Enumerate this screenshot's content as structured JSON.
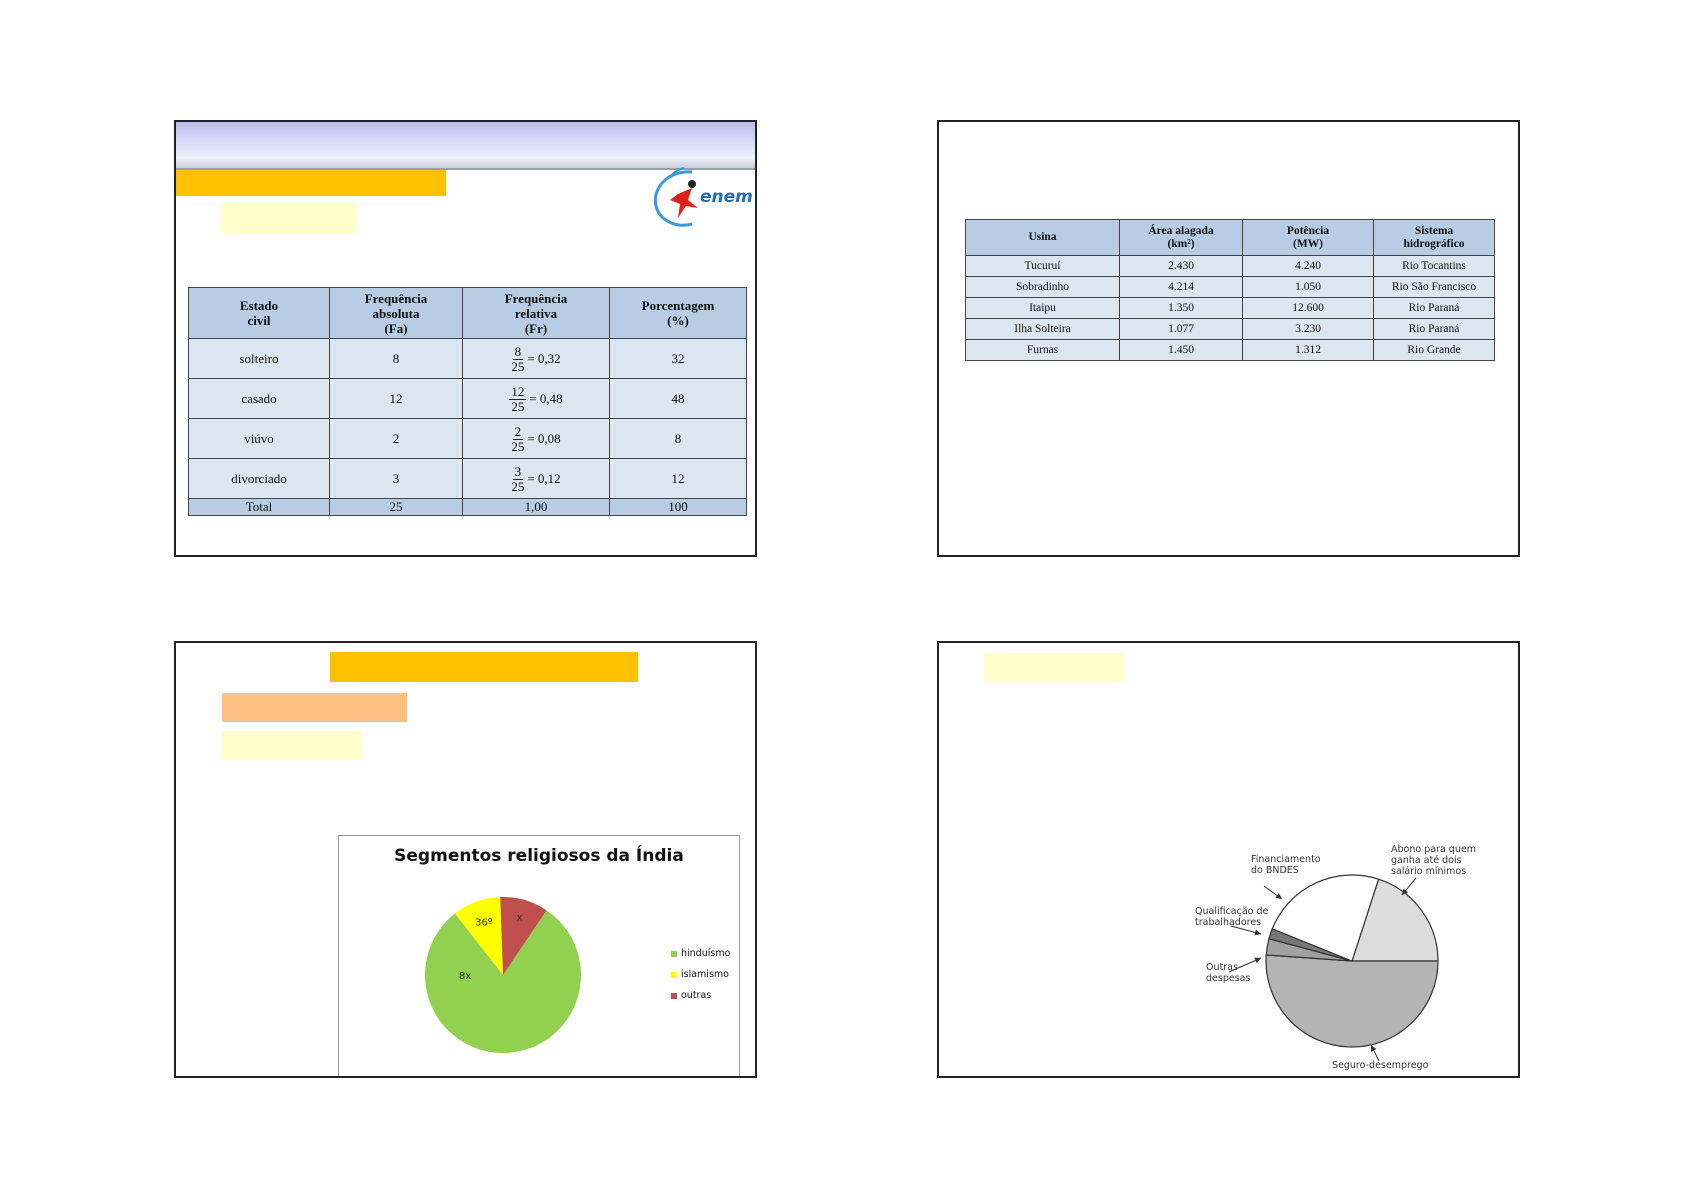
{
  "slide1": {
    "table": {
      "headers": [
        "Estado\ncivil",
        "Frequência\nabsoluta\n(Fa)",
        "Frequência\nrelativa\n(Fr)",
        "Porcentagem\n(%)"
      ],
      "rows": [
        {
          "estado": "solteiro",
          "fa": "8",
          "num": "8",
          "den": "25",
          "res": "= 0,32",
          "pct": "32"
        },
        {
          "estado": "casado",
          "fa": "12",
          "num": "12",
          "den": "25",
          "res": "= 0,48",
          "pct": "48"
        },
        {
          "estado": "viúvo",
          "fa": "2",
          "num": "2",
          "den": "25",
          "res": "= 0,08",
          "pct": "8"
        },
        {
          "estado": "divorciado",
          "fa": "3",
          "num": "3",
          "den": "25",
          "res": "= 0,12",
          "pct": "12"
        }
      ],
      "total": {
        "label": "Total",
        "fa": "25",
        "fr": "1,00",
        "pct": "100"
      }
    },
    "logo_text": "enem",
    "colors": {
      "orange": "#ffc000",
      "yellow": "#ffffcc",
      "header": "#b8cce4",
      "cell": "#dce6f1"
    }
  },
  "slide2": {
    "table": {
      "headers": [
        "Usina",
        "Área alagada\n(km²)",
        "Potência\n(MW)",
        "Sistema\nhidrográfico"
      ],
      "rows": [
        [
          "Tucuruí",
          "2.430",
          "4.240",
          "Rio Tocantins"
        ],
        [
          "Sobradinho",
          "4.214",
          "1.050",
          "Rio São Francisco"
        ],
        [
          "Itaipu",
          "1.350",
          "12.600",
          "Rio Paraná"
        ],
        [
          "Ilha Solteira",
          "1.077",
          "3.230",
          "Rio Paraná"
        ],
        [
          "Furnas",
          "1.450",
          "1.312",
          "Rio Grande"
        ]
      ]
    }
  },
  "slide3": {
    "chart_title": "Segmentos religiosos da Índia",
    "colors": {
      "orange": "#ffc000",
      "peach": "#ffc080",
      "yellow": "#ffffcc"
    },
    "chart_data": {
      "type": "pie",
      "title": "Segmentos religiosos da Índia",
      "series": [
        {
          "name": "hinduísmo",
          "degrees": 288,
          "label": "8x",
          "color": "#92d050"
        },
        {
          "name": "islamismo",
          "degrees": 36,
          "label": "36º",
          "color": "#ffff00"
        },
        {
          "name": "outras",
          "degrees": 36,
          "label": "x",
          "color": "#c0504d"
        }
      ],
      "legend_position": "right"
    }
  },
  "slide4": {
    "colors": {
      "yellow": "#ffffcc"
    },
    "chart_data": {
      "type": "pie",
      "series": [
        {
          "name": "Abono para quem ganha até dois salário mínimos",
          "degrees": 72,
          "color": "#dcdcdc"
        },
        {
          "name": "Seguro-desemprego",
          "degrees": 184,
          "color": "#b4b4b4"
        },
        {
          "name": "Outras despesas",
          "degrees": 11,
          "color": "#a0a0a0"
        },
        {
          "name": "Qualificação de trabalhadores",
          "degrees": 7,
          "color": "#787878"
        },
        {
          "name": "Financiamento do BNDES",
          "degrees": 86,
          "color": "#ffffff"
        }
      ],
      "callouts": {
        "abono": [
          "Abono para quem",
          "ganha até dois",
          "salário mínimos"
        ],
        "bndes": [
          "Financiamento",
          "do BNDES"
        ],
        "qualif": [
          "Qualificação de",
          "trabalhadores"
        ],
        "outras": [
          "Outras",
          "despesas"
        ],
        "seguro": [
          "Seguro-desemprego"
        ]
      }
    }
  }
}
